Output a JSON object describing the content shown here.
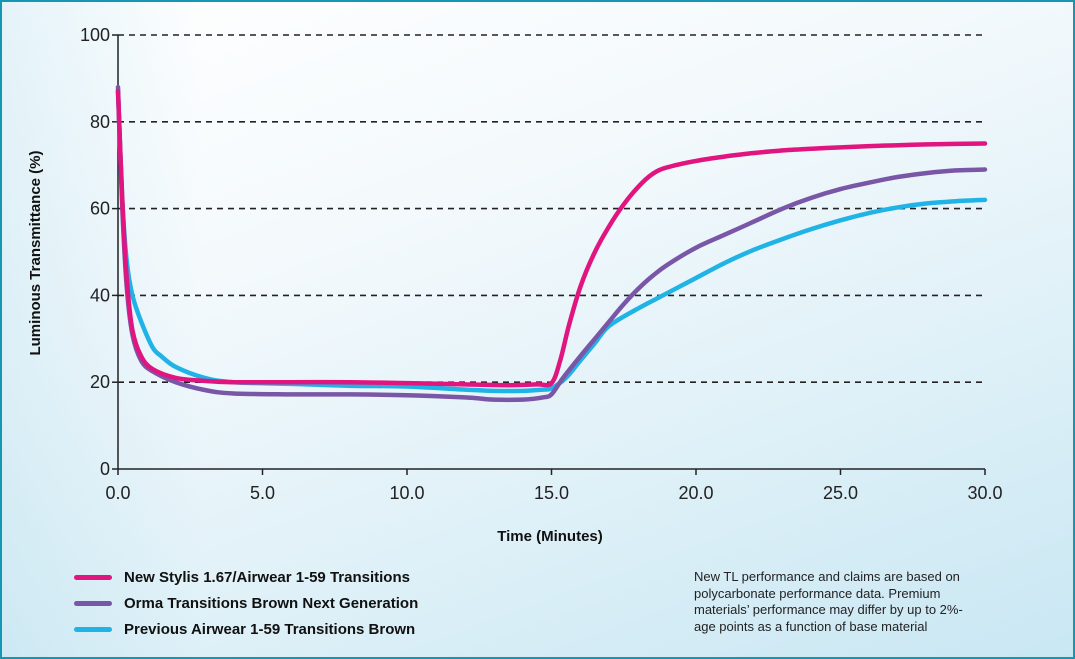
{
  "chart_data": {
    "type": "line",
    "xlabel": "Time (Minutes)",
    "ylabel": "Luminous Transmittance (%)",
    "xlim": [
      0,
      30
    ],
    "ylim": [
      0,
      100
    ],
    "x_ticks": [
      0,
      5,
      10,
      15,
      20,
      25,
      30
    ],
    "x_tick_labels": [
      "0.0",
      "5.0",
      "10.0",
      "15.0",
      "20.0",
      "25.0",
      "30.0"
    ],
    "y_ticks": [
      0,
      20,
      40,
      60,
      80,
      100
    ],
    "y_tick_labels": [
      "0",
      "20",
      "40",
      "60",
      "80",
      "100"
    ],
    "grid": "horizontal dashed",
    "legend_position": "bottom-left",
    "series": [
      {
        "name": "New Stylis 1.67/Airwear 1-59 Transitions",
        "color": "#e0157f",
        "points": [
          [
            0,
            87
          ],
          [
            0.15,
            62
          ],
          [
            0.3,
            44
          ],
          [
            0.5,
            32
          ],
          [
            0.8,
            26
          ],
          [
            1.2,
            23
          ],
          [
            2,
            21
          ],
          [
            3,
            20.3
          ],
          [
            4,
            20
          ],
          [
            6,
            20
          ],
          [
            8,
            20
          ],
          [
            10,
            19.8
          ],
          [
            12,
            19.5
          ],
          [
            13.5,
            19.3
          ],
          [
            14.5,
            19.5
          ],
          [
            15,
            19.8
          ],
          [
            15.3,
            25
          ],
          [
            15.6,
            33
          ],
          [
            16,
            42
          ],
          [
            16.5,
            50
          ],
          [
            17,
            56
          ],
          [
            17.5,
            61
          ],
          [
            18,
            65
          ],
          [
            18.5,
            68
          ],
          [
            19,
            69.5
          ],
          [
            20,
            71
          ],
          [
            21,
            72
          ],
          [
            22,
            72.8
          ],
          [
            23,
            73.4
          ],
          [
            24,
            73.8
          ],
          [
            25,
            74.1
          ],
          [
            26,
            74.4
          ],
          [
            27,
            74.6
          ],
          [
            28,
            74.8
          ],
          [
            29,
            74.9
          ],
          [
            30,
            75
          ]
        ]
      },
      {
        "name": "Orma Transitions Brown Next Generation",
        "color": "#7a56a6",
        "points": [
          [
            0,
            88
          ],
          [
            0.15,
            60
          ],
          [
            0.3,
            42
          ],
          [
            0.5,
            31
          ],
          [
            0.8,
            25
          ],
          [
            1.2,
            22.5
          ],
          [
            2,
            20
          ],
          [
            3,
            18.2
          ],
          [
            4,
            17.4
          ],
          [
            6,
            17.2
          ],
          [
            8,
            17.2
          ],
          [
            10,
            17
          ],
          [
            12,
            16.5
          ],
          [
            13,
            16
          ],
          [
            14,
            16
          ],
          [
            14.7,
            16.5
          ],
          [
            15,
            17.2
          ],
          [
            15.4,
            21
          ],
          [
            16,
            26
          ],
          [
            16.5,
            30
          ],
          [
            17,
            34
          ],
          [
            17.5,
            38
          ],
          [
            18,
            41.5
          ],
          [
            18.5,
            44.5
          ],
          [
            19,
            47
          ],
          [
            20,
            51
          ],
          [
            21,
            54
          ],
          [
            22,
            57
          ],
          [
            23,
            60
          ],
          [
            24,
            62.5
          ],
          [
            25,
            64.5
          ],
          [
            26,
            66
          ],
          [
            27,
            67.3
          ],
          [
            28,
            68.2
          ],
          [
            29,
            68.8
          ],
          [
            30,
            69
          ]
        ]
      },
      {
        "name": "Previous Airwear 1-59 Transitions Brown",
        "color": "#1fb3e6",
        "points": [
          [
            0,
            87
          ],
          [
            0.15,
            62
          ],
          [
            0.3,
            48
          ],
          [
            0.5,
            40
          ],
          [
            0.8,
            34
          ],
          [
            1.2,
            28
          ],
          [
            1.5,
            26
          ],
          [
            2,
            23.5
          ],
          [
            3,
            21
          ],
          [
            4,
            20
          ],
          [
            6,
            19.6
          ],
          [
            8,
            19.2
          ],
          [
            10,
            19
          ],
          [
            12,
            18.3
          ],
          [
            13,
            18
          ],
          [
            14,
            18
          ],
          [
            14.7,
            18.3
          ],
          [
            15,
            18.6
          ],
          [
            15.5,
            21
          ],
          [
            16,
            25
          ],
          [
            16.5,
            29
          ],
          [
            17,
            33
          ],
          [
            18,
            37
          ],
          [
            19,
            40.5
          ],
          [
            20,
            44
          ],
          [
            21,
            47.5
          ],
          [
            22,
            50.5
          ],
          [
            23,
            53
          ],
          [
            24,
            55.3
          ],
          [
            25,
            57.3
          ],
          [
            26,
            59
          ],
          [
            27,
            60.3
          ],
          [
            28,
            61.2
          ],
          [
            29,
            61.7
          ],
          [
            30,
            62
          ]
        ]
      }
    ]
  },
  "note": {
    "lines": [
      "New TL performance and claims are based on",
      "polycarbonate performance data. Premium",
      "materials’ performance may differ by up to 2%-",
      "age points as a function of base material"
    ]
  }
}
